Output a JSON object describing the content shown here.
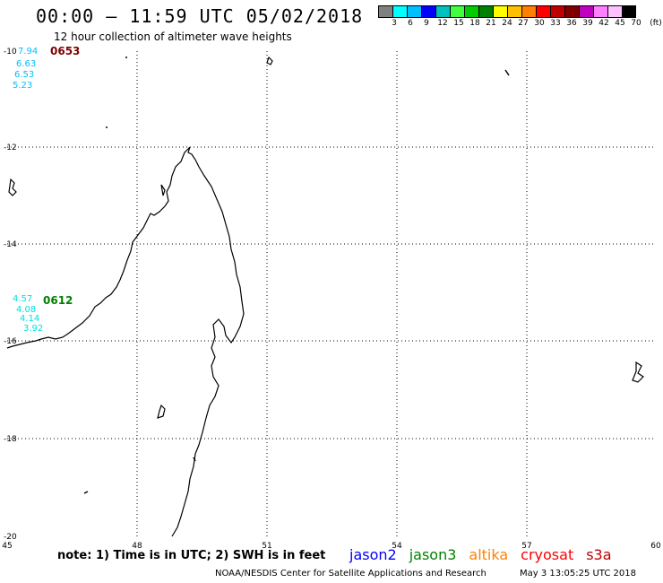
{
  "header": {
    "title": "00:00 – 11:59 UTC 05/02/2018",
    "subtitle": "12 hour collection of altimeter wave heights"
  },
  "scale": {
    "colors": [
      "#808080",
      "#00ffff",
      "#00bfff",
      "#0000ff",
      "#00c0c0",
      "#40ff40",
      "#00cc00",
      "#008000",
      "#ffff00",
      "#ffc000",
      "#ff8000",
      "#ff0000",
      "#c00000",
      "#800000",
      "#c000c0",
      "#ff80ff",
      "#ffc0ff",
      "#000000"
    ],
    "labels": [
      "3",
      "6",
      "9",
      "12",
      "15",
      "18",
      "21",
      "24",
      "27",
      "30",
      "33",
      "36",
      "39",
      "42",
      "45",
      "70",
      "(ft)"
    ]
  },
  "axes": {
    "lon": [
      "45",
      "48",
      "51",
      "54",
      "57",
      "60"
    ],
    "lat": [
      "-10",
      "-12",
      "-14",
      "-16",
      "-18",
      "-20"
    ]
  },
  "passes": [
    {
      "time": "0653",
      "color": "#800000",
      "values": [
        "7.94",
        "6.63",
        "6.53",
        "5.23"
      ],
      "value_color": "#00bfff"
    },
    {
      "time": "0612",
      "color": "#008000",
      "values": [
        "4.57",
        "4.08",
        "4.14",
        "3.92"
      ],
      "value_color": "#00e0e0"
    }
  ],
  "footer": {
    "note": "note: 1) Time is in UTC; 2) SWH is in feet",
    "credit": "NOAA/NESDIS Center for Satellite Applications and Research",
    "timestamp": "May  3 13:05:25 UTC 2018"
  },
  "satellites": [
    {
      "name": "jason2",
      "color": "#0000ff"
    },
    {
      "name": "jason3",
      "color": "#008000"
    },
    {
      "name": "altika",
      "color": "#ff8000"
    },
    {
      "name": "cryosat",
      "color": "#ff0000"
    },
    {
      "name": "s3a",
      "color": "#c00000"
    }
  ]
}
